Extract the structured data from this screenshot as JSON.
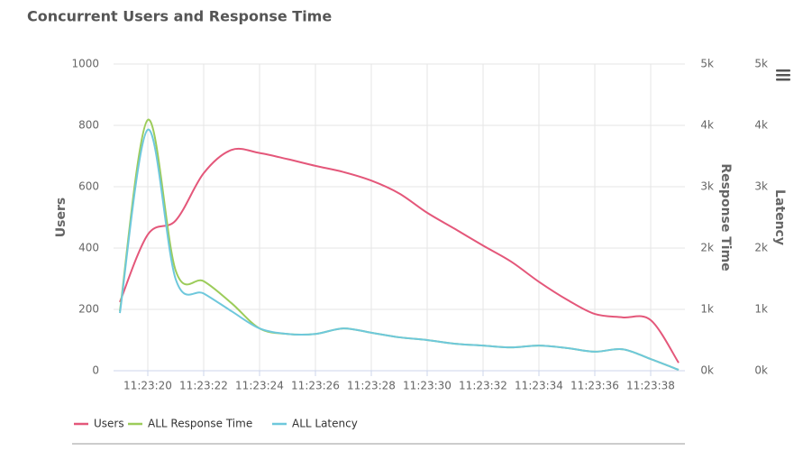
{
  "chart_data": {
    "type": "line",
    "title": "Concurrent Users and Response Time",
    "categories": [
      null,
      "11:23:20",
      null,
      "11:23:22",
      null,
      "11:23:24",
      null,
      "11:23:26",
      null,
      "11:23:28",
      null,
      "11:23:30",
      null,
      "11:23:32",
      null,
      "11:23:34",
      null,
      "11:23:36",
      null,
      "11:23:38",
      null
    ],
    "y_label": "Users",
    "y2_label": "Response Time",
    "y3_label": "Latency",
    "ylim": [
      0,
      1000
    ],
    "yticks": [
      0,
      200,
      400,
      600,
      800,
      1000
    ],
    "y2lim": [
      0,
      5000
    ],
    "y2ticks": [
      {
        "value": 0,
        "label": "0k"
      },
      {
        "value": 1000,
        "label": "1k"
      },
      {
        "value": 2000,
        "label": "2k"
      },
      {
        "value": 3000,
        "label": "3k"
      },
      {
        "value": 4000,
        "label": "4k"
      },
      {
        "value": 5000,
        "label": "5k"
      }
    ],
    "y3lim": [
      0,
      5000
    ],
    "y3ticks": [
      {
        "value": 0,
        "label": "0k"
      },
      {
        "value": 1000,
        "label": "1k"
      },
      {
        "value": 2000,
        "label": "2k"
      },
      {
        "value": 3000,
        "label": "3k"
      },
      {
        "value": 4000,
        "label": "4k"
      },
      {
        "value": 5000,
        "label": "5k"
      }
    ],
    "grid": true,
    "series": [
      {
        "name": "Users",
        "color": "#e4577a",
        "axis": "y",
        "values": [
          224,
          444,
          490,
          644,
          720,
          710,
          690,
          668,
          648,
          620,
          578,
          515,
          462,
          408,
          356,
          290,
          232,
          185,
          174,
          165,
          26
        ]
      },
      {
        "name": "ALL Response Time",
        "color": "#9ccc5a",
        "axis": "y2",
        "values": [
          970,
          4090,
          1630,
          1460,
          1100,
          690,
          600,
          600,
          690,
          620,
          545,
          500,
          440,
          410,
          380,
          410,
          370,
          310,
          350,
          190,
          15
        ]
      },
      {
        "name": "ALL Latency",
        "color": "#6ec8dc",
        "axis": "y3",
        "values": [
          940,
          3930,
          1490,
          1260,
          970,
          690,
          600,
          600,
          690,
          620,
          545,
          500,
          440,
          410,
          380,
          410,
          370,
          310,
          350,
          190,
          15
        ]
      }
    ]
  }
}
